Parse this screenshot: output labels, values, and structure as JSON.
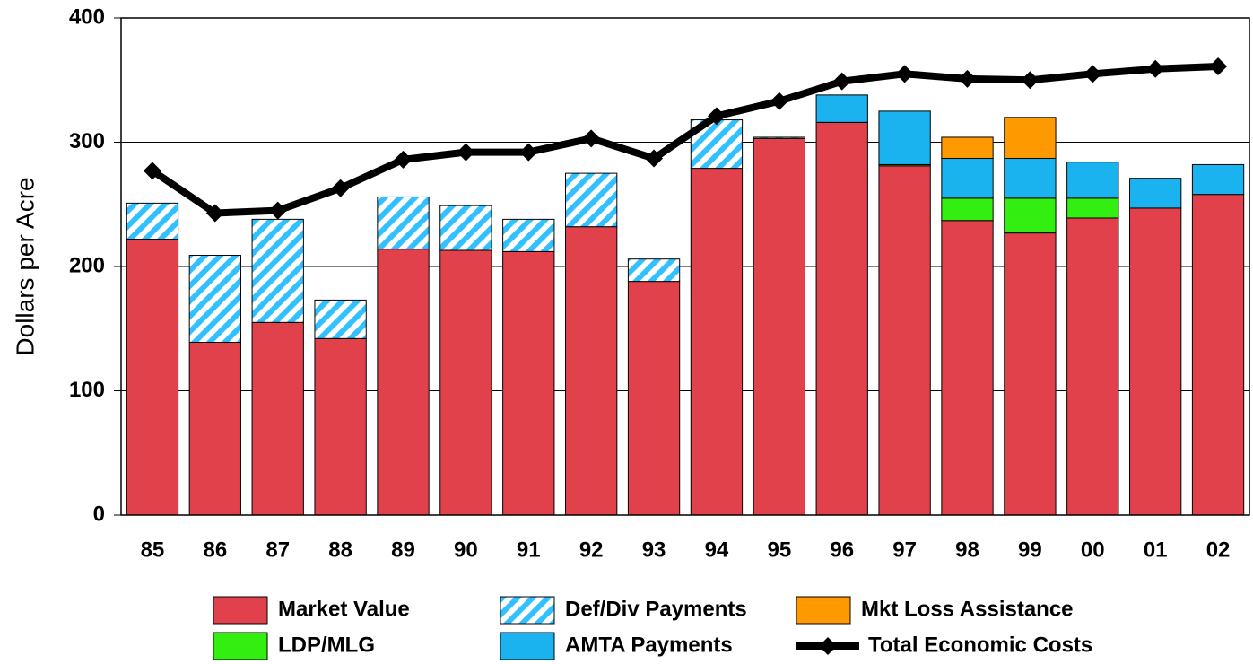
{
  "chart_data": {
    "type": "bar",
    "stacked": true,
    "ylabel": "Dollars per Acre",
    "categories": [
      "85",
      "86",
      "87",
      "88",
      "89",
      "90",
      "91",
      "92",
      "93",
      "94",
      "95",
      "96",
      "97",
      "98",
      "99",
      "00",
      "01",
      "02"
    ],
    "series": [
      {
        "name": "Market Value",
        "color": "#e0414b",
        "values": [
          222,
          139,
          155,
          142,
          214,
          213,
          212,
          232,
          188,
          279,
          303,
          316,
          281,
          237,
          227,
          239,
          247,
          258
        ]
      },
      {
        "name": "Def/Div Payments",
        "color": "#33c0ff",
        "hatch": true,
        "values": [
          29,
          70,
          83,
          31,
          42,
          36,
          26,
          43,
          18,
          39,
          1,
          0,
          0,
          0,
          0,
          0,
          0,
          0
        ]
      },
      {
        "name": "Mkt Loss Assistance",
        "color": "#ff9900",
        "values": [
          0,
          0,
          0,
          0,
          0,
          0,
          0,
          0,
          0,
          0,
          0,
          0,
          0,
          17,
          33,
          0,
          0,
          0
        ]
      },
      {
        "name": "LDP/MLG",
        "color": "#33ee11",
        "values": [
          0,
          0,
          0,
          0,
          0,
          0,
          0,
          0,
          0,
          0,
          0,
          0,
          1,
          18,
          28,
          16,
          0,
          0
        ]
      },
      {
        "name": "AMTA Payments",
        "color": "#1ab3f0",
        "values": [
          0,
          0,
          0,
          0,
          0,
          0,
          0,
          0,
          0,
          0,
          0,
          22,
          43,
          32,
          32,
          29,
          24,
          24
        ]
      },
      {
        "name": "Total Economic Costs",
        "type": "line",
        "color": "#000000",
        "values": [
          277,
          243,
          245,
          263,
          286,
          292,
          292,
          303,
          287,
          321,
          333,
          349,
          355,
          351,
          350,
          355,
          359,
          361
        ]
      }
    ],
    "ylim": [
      0,
      400
    ],
    "yticks": [
      0,
      100,
      200,
      300,
      400
    ],
    "grid": true
  }
}
